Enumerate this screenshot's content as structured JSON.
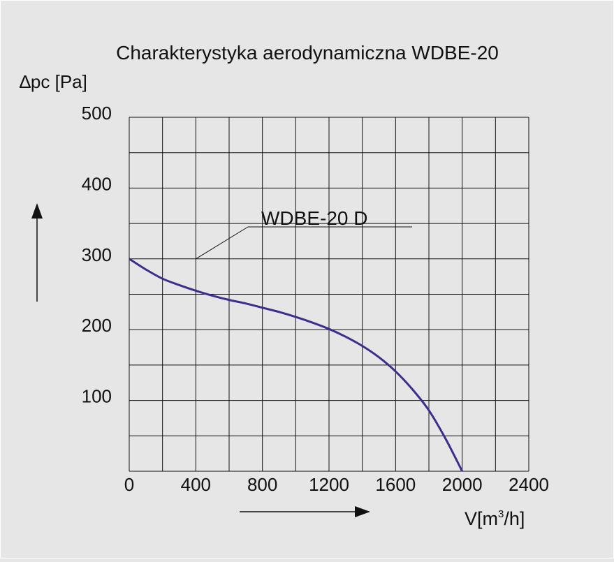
{
  "chart_data": {
    "type": "line",
    "title": "Charakterystyka aerodynamiczna WDBE-20",
    "ylabel_symbol": "∆",
    "ylabel_text": "pc [Pa]",
    "xlabel_main": "V[m",
    "xlabel_sup": "3",
    "xlabel_tail": "/h]",
    "xlim": [
      0,
      2400
    ],
    "ylim": [
      0,
      500
    ],
    "x_tick_labels": [
      "0",
      "400",
      "800",
      "1200",
      "1600",
      "2000",
      "2400"
    ],
    "y_tick_labels": [
      "500",
      "400",
      "300",
      "200",
      "100"
    ],
    "grid": true,
    "x_grid_step": 200,
    "y_grid_step": 50,
    "series": [
      {
        "name": "WDBE-20 D",
        "color": "#3d2e8c",
        "points": [
          [
            0,
            300
          ],
          [
            100,
            285
          ],
          [
            200,
            272
          ],
          [
            300,
            263
          ],
          [
            400,
            255
          ],
          [
            500,
            248
          ],
          [
            600,
            242
          ],
          [
            700,
            237
          ],
          [
            800,
            231
          ],
          [
            900,
            225
          ],
          [
            1000,
            218
          ],
          [
            1100,
            210
          ],
          [
            1200,
            201
          ],
          [
            1300,
            190
          ],
          [
            1400,
            177
          ],
          [
            1500,
            161
          ],
          [
            1600,
            141
          ],
          [
            1700,
            116
          ],
          [
            1800,
            86
          ],
          [
            1900,
            46
          ],
          [
            2000,
            0
          ]
        ]
      }
    ],
    "annotation": {
      "text": "WDBE-20 D",
      "points_to": [
        400,
        300
      ]
    }
  },
  "colors": {
    "background": "#e6e6e6",
    "grid": "#111111",
    "curve": "#3d2e8c",
    "frame": "#ffffff"
  }
}
